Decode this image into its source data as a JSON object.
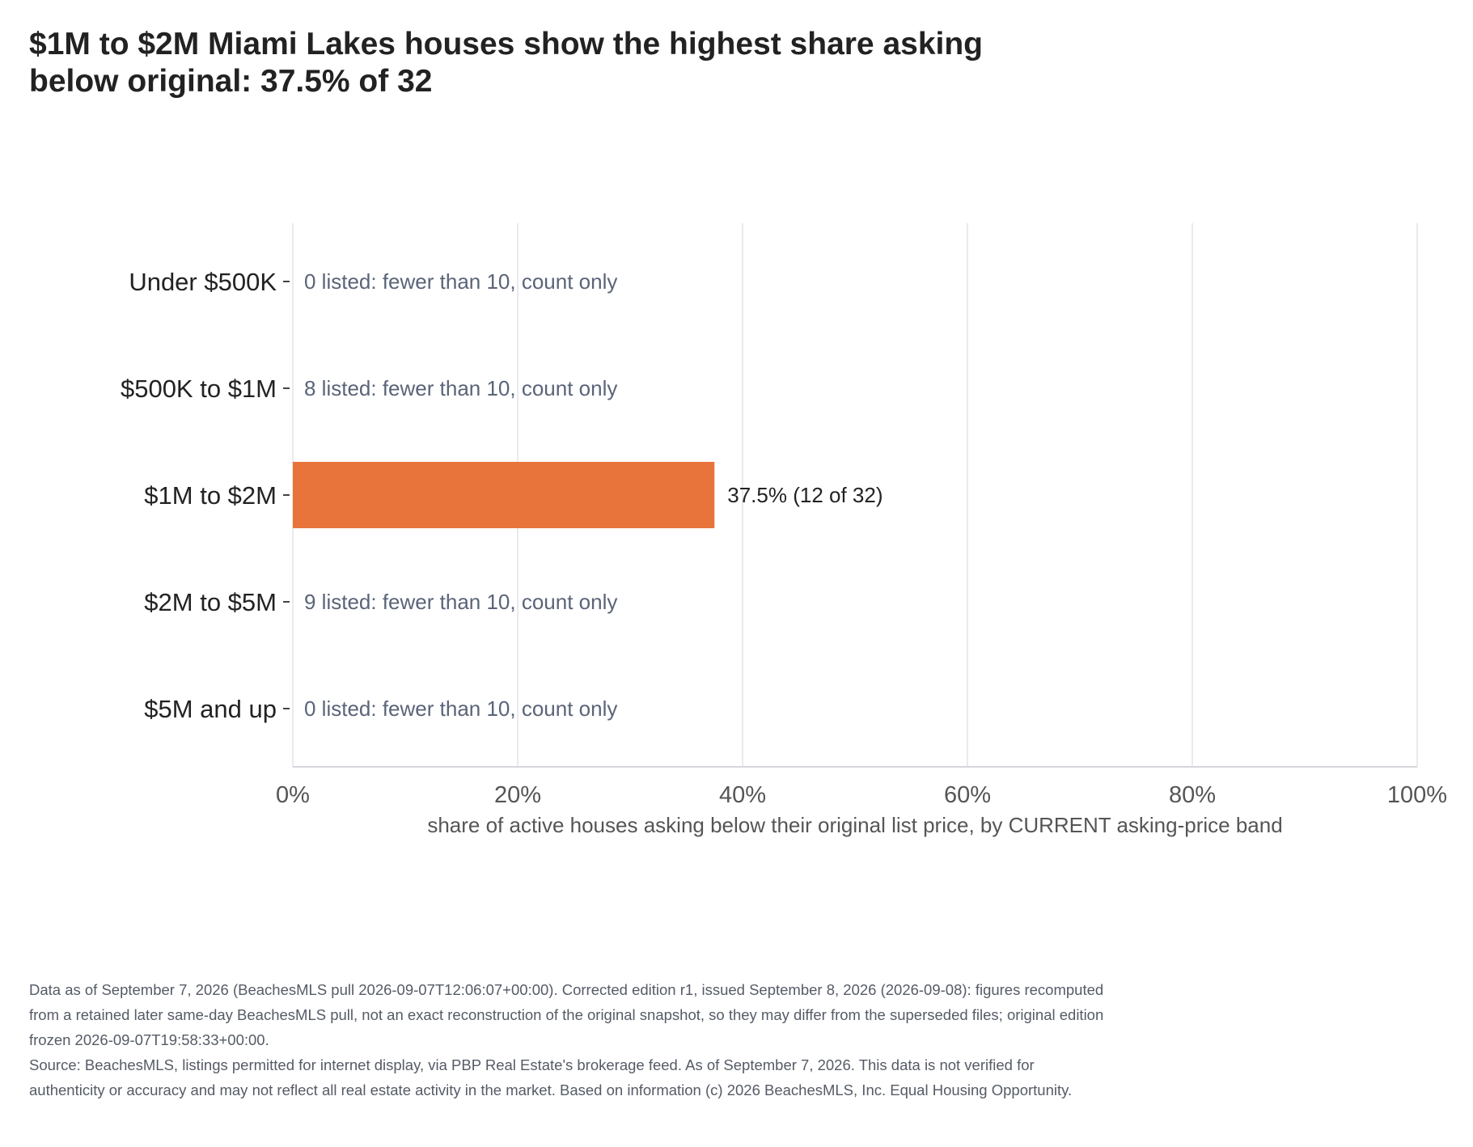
{
  "colors": {
    "bar": "#e8743b",
    "grid": "#e3e3e8",
    "axis": "#d6d6dc",
    "note_text": "#5a6478",
    "label_text": "#222222",
    "tick_text": "#555555"
  },
  "chart_data": {
    "type": "bar",
    "orientation": "horizontal",
    "title": "$1M to $2M Miami Lakes houses show the highest share asking below original: 37.5% of 32",
    "xlabel": "share of active houses asking below their original list price, by CURRENT asking-price band",
    "ylabel": "",
    "xlim": [
      0,
      100
    ],
    "x_ticks": [
      "0%",
      "20%",
      "40%",
      "60%",
      "80%",
      "100%"
    ],
    "x_tick_values": [
      0,
      20,
      40,
      60,
      80,
      100
    ],
    "grid": "vertical",
    "categories": [
      "Under $500K",
      "$500K to $1M",
      "$1M to $2M",
      "$2M to $5M",
      "$5M and up"
    ],
    "values": [
      null,
      null,
      37.5,
      null,
      null
    ],
    "labels": [
      "0 listed: fewer than 10, count only",
      "8 listed: fewer than 10, count only",
      "37.5%  (12 of 32)",
      "9 listed: fewer than 10, count only",
      "0 listed: fewer than 10, count only"
    ]
  },
  "footnotes": {
    "edition_note": "Data as of September 7, 2026 (BeachesMLS pull 2026-09-07T12:06:07+00:00). Corrected edition r1, issued September 8, 2026 (2026-09-08): figures recomputed from a retained later same-day BeachesMLS pull, not an exact reconstruction of the original snapshot, so they may differ from the superseded files; original edition frozen 2026-09-07T19:58:33+00:00.",
    "source_note": "Source: BeachesMLS, listings permitted for internet display, via PBP Real Estate's brokerage feed. As of September 7, 2026. This data is not verified for authenticity or accuracy and may not reflect all real estate activity in the market. Based on information (c) 2026 BeachesMLS, Inc. Equal Housing Opportunity."
  }
}
